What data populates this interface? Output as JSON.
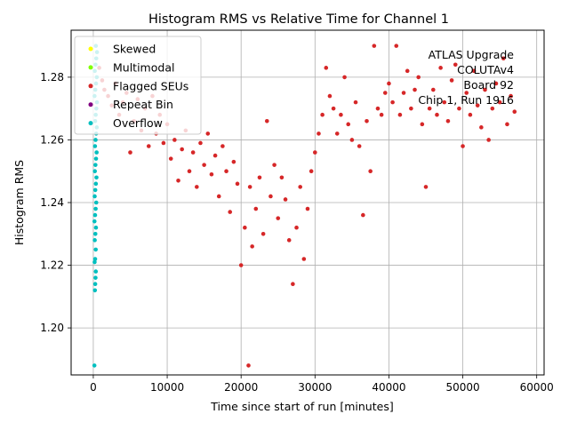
{
  "chart_data": {
    "type": "scatter",
    "title": "Histogram RMS vs Relative Time for Channel 1",
    "xlabel": "Time since start of run [minutes]",
    "ylabel": "Histogram RMS",
    "xlim": [
      -3000,
      61000
    ],
    "ylim": [
      1.185,
      1.295
    ],
    "xticks": [
      0,
      10000,
      20000,
      30000,
      40000,
      50000,
      60000
    ],
    "yticks": [
      1.2,
      1.22,
      1.24,
      1.26,
      1.28
    ],
    "ytick_labels": [
      "1.20",
      "1.22",
      "1.24",
      "1.26",
      "1.28"
    ],
    "grid": true,
    "legend_position": "top-left",
    "annotation_lines": [
      "ATLAS Upgrade",
      "COLUTAv4",
      "Board 92",
      "Chip 1, Run 1916"
    ],
    "series": [
      {
        "name": "Skewed",
        "color": "#ffff00",
        "points": []
      },
      {
        "name": "Multimodal",
        "color": "#7fff00",
        "points": []
      },
      {
        "name": "Flagged SEUs",
        "color": "#d62728",
        "points": [
          [
            800,
            1.283
          ],
          [
            1200,
            1.279
          ],
          [
            1500,
            1.276
          ],
          [
            2000,
            1.274
          ],
          [
            2500,
            1.271
          ],
          [
            3000,
            1.278
          ],
          [
            3500,
            1.268
          ],
          [
            4000,
            1.272
          ],
          [
            4500,
            1.275
          ],
          [
            5000,
            1.256
          ],
          [
            5500,
            1.266
          ],
          [
            6000,
            1.273
          ],
          [
            6500,
            1.263
          ],
          [
            7000,
            1.27
          ],
          [
            7500,
            1.258
          ],
          [
            8000,
            1.274
          ],
          [
            8500,
            1.262
          ],
          [
            9000,
            1.268
          ],
          [
            9500,
            1.259
          ],
          [
            10000,
            1.265
          ],
          [
            10500,
            1.254
          ],
          [
            11000,
            1.26
          ],
          [
            11500,
            1.247
          ],
          [
            12000,
            1.257
          ],
          [
            12500,
            1.263
          ],
          [
            13000,
            1.25
          ],
          [
            13500,
            1.256
          ],
          [
            14000,
            1.245
          ],
          [
            14500,
            1.259
          ],
          [
            15000,
            1.252
          ],
          [
            15500,
            1.262
          ],
          [
            16000,
            1.249
          ],
          [
            16500,
            1.255
          ],
          [
            17000,
            1.242
          ],
          [
            17500,
            1.258
          ],
          [
            18000,
            1.25
          ],
          [
            18500,
            1.237
          ],
          [
            19000,
            1.253
          ],
          [
            19500,
            1.246
          ],
          [
            20000,
            1.22
          ],
          [
            20500,
            1.232
          ],
          [
            21000,
            1.188
          ],
          [
            21200,
            1.245
          ],
          [
            21500,
            1.226
          ],
          [
            22000,
            1.238
          ],
          [
            22500,
            1.248
          ],
          [
            23000,
            1.23
          ],
          [
            23500,
            1.266
          ],
          [
            24000,
            1.242
          ],
          [
            24500,
            1.252
          ],
          [
            25000,
            1.235
          ],
          [
            25500,
            1.248
          ],
          [
            26000,
            1.241
          ],
          [
            26500,
            1.228
          ],
          [
            27000,
            1.214
          ],
          [
            27500,
            1.232
          ],
          [
            28000,
            1.245
          ],
          [
            28500,
            1.222
          ],
          [
            29000,
            1.238
          ],
          [
            29500,
            1.25
          ],
          [
            30000,
            1.256
          ],
          [
            30500,
            1.262
          ],
          [
            31000,
            1.268
          ],
          [
            31500,
            1.283
          ],
          [
            32000,
            1.274
          ],
          [
            32500,
            1.27
          ],
          [
            33000,
            1.262
          ],
          [
            33500,
            1.268
          ],
          [
            34000,
            1.28
          ],
          [
            34500,
            1.265
          ],
          [
            35000,
            1.26
          ],
          [
            35500,
            1.272
          ],
          [
            36000,
            1.258
          ],
          [
            36500,
            1.236
          ],
          [
            37000,
            1.266
          ],
          [
            37500,
            1.25
          ],
          [
            38000,
            1.29
          ],
          [
            38500,
            1.27
          ],
          [
            39000,
            1.268
          ],
          [
            39500,
            1.275
          ],
          [
            40000,
            1.278
          ],
          [
            40500,
            1.272
          ],
          [
            41000,
            1.29
          ],
          [
            41500,
            1.268
          ],
          [
            42000,
            1.275
          ],
          [
            42500,
            1.282
          ],
          [
            43000,
            1.27
          ],
          [
            43500,
            1.276
          ],
          [
            44000,
            1.28
          ],
          [
            44500,
            1.265
          ],
          [
            45000,
            1.245
          ],
          [
            45500,
            1.27
          ],
          [
            46000,
            1.276
          ],
          [
            46500,
            1.268
          ],
          [
            47000,
            1.283
          ],
          [
            47500,
            1.272
          ],
          [
            48000,
            1.266
          ],
          [
            48500,
            1.279
          ],
          [
            49000,
            1.284
          ],
          [
            49500,
            1.27
          ],
          [
            50000,
            1.258
          ],
          [
            50500,
            1.275
          ],
          [
            51000,
            1.268
          ],
          [
            51500,
            1.282
          ],
          [
            52000,
            1.271
          ],
          [
            52500,
            1.264
          ],
          [
            53000,
            1.276
          ],
          [
            53500,
            1.26
          ],
          [
            54000,
            1.27
          ],
          [
            54500,
            1.278
          ],
          [
            55000,
            1.272
          ],
          [
            55500,
            1.286
          ],
          [
            56000,
            1.265
          ],
          [
            56500,
            1.274
          ],
          [
            57000,
            1.269
          ]
        ]
      },
      {
        "name": "Repeat Bin",
        "color": "#800080",
        "points": []
      },
      {
        "name": "Overflow",
        "color": "#00bfbf",
        "points": [
          [
            150,
            1.188
          ],
          [
            220,
            1.212
          ],
          [
            260,
            1.214
          ],
          [
            300,
            1.216
          ],
          [
            340,
            1.218
          ],
          [
            180,
            1.221
          ],
          [
            250,
            1.222
          ],
          [
            330,
            1.225
          ],
          [
            200,
            1.228
          ],
          [
            280,
            1.23
          ],
          [
            360,
            1.232
          ],
          [
            160,
            1.234
          ],
          [
            240,
            1.236
          ],
          [
            320,
            1.238
          ],
          [
            400,
            1.24
          ],
          [
            190,
            1.242
          ],
          [
            270,
            1.244
          ],
          [
            350,
            1.246
          ],
          [
            430,
            1.248
          ],
          [
            210,
            1.25
          ],
          [
            290,
            1.252
          ],
          [
            370,
            1.254
          ],
          [
            450,
            1.256
          ],
          [
            230,
            1.258
          ],
          [
            310,
            1.26
          ],
          [
            390,
            1.262
          ],
          [
            470,
            1.264
          ],
          [
            250,
            1.266
          ],
          [
            330,
            1.268
          ],
          [
            410,
            1.27
          ],
          [
            490,
            1.272
          ],
          [
            170,
            1.274
          ],
          [
            270,
            1.276
          ],
          [
            370,
            1.278
          ],
          [
            470,
            1.28
          ],
          [
            200,
            1.282
          ],
          [
            300,
            1.284
          ],
          [
            400,
            1.286
          ],
          [
            500,
            1.288
          ],
          [
            350,
            1.29
          ]
        ]
      }
    ]
  }
}
